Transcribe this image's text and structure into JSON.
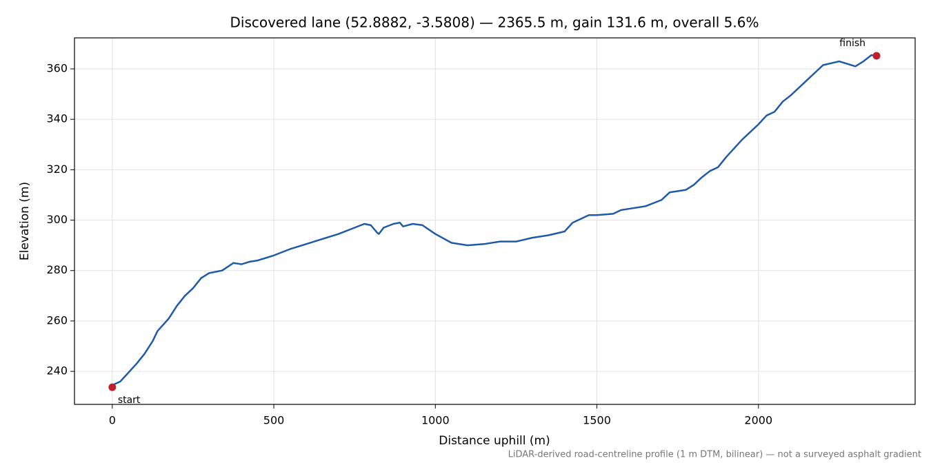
{
  "chart_data": {
    "type": "line",
    "title": "Discovered lane (52.8882, -3.5808) — 2365.5 m, gain 131.6 m, overall 5.6%",
    "xlabel": "Distance uphill (m)",
    "ylabel": "Elevation (m)",
    "note": "LiDAR-derived road-centreline profile (1 m DTM, bilinear) — not a surveyed asphalt gradient",
    "x": [
      0,
      25,
      50,
      75,
      100,
      125,
      140,
      175,
      200,
      225,
      250,
      275,
      300,
      340,
      375,
      400,
      425,
      450,
      500,
      550,
      600,
      650,
      700,
      750,
      780,
      800,
      820,
      825,
      840,
      870,
      890,
      900,
      930,
      960,
      1000,
      1050,
      1100,
      1150,
      1200,
      1250,
      1300,
      1350,
      1400,
      1425,
      1475,
      1500,
      1550,
      1575,
      1600,
      1650,
      1700,
      1725,
      1775,
      1800,
      1825,
      1850,
      1875,
      1900,
      1950,
      2000,
      2025,
      2050,
      2075,
      2100,
      2150,
      2200,
      2250,
      2275,
      2300,
      2325,
      2350,
      2365.5
    ],
    "series": [
      {
        "name": "Elevation",
        "color": "#1f5aa8",
        "values": [
          234.5,
          236,
          239.5,
          243,
          247,
          252,
          256,
          261,
          266,
          270,
          273,
          277,
          279,
          280,
          283,
          282.5,
          283.5,
          284,
          286,
          288.5,
          290.5,
          292.5,
          294.5,
          297,
          298.5,
          298,
          295,
          294.5,
          297,
          298.5,
          299,
          297.5,
          298.5,
          298,
          294.5,
          291,
          290,
          290.5,
          291.5,
          291.5,
          293,
          294,
          295.5,
          299,
          302,
          302,
          302.5,
          304,
          304.5,
          305.5,
          308,
          311,
          312,
          314,
          317,
          319.5,
          321,
          325,
          332,
          338,
          341.5,
          343,
          347,
          349.5,
          355.5,
          361.5,
          363,
          362,
          361,
          363,
          365.5,
          365
        ]
      }
    ],
    "annotations": [
      {
        "text": "start",
        "x": 0,
        "y": 233.7,
        "color": "#c0202a"
      },
      {
        "text": "finish",
        "x": 2365.5,
        "y": 365.2,
        "color": "#c0202a"
      }
    ],
    "xlim": [
      -117,
      2485
    ],
    "ylim": [
      226.9,
      372.3
    ],
    "xticks": [
      0,
      500,
      1000,
      1500,
      2000
    ],
    "yticks": [
      240,
      260,
      280,
      300,
      320,
      340,
      360
    ],
    "grid": true
  }
}
